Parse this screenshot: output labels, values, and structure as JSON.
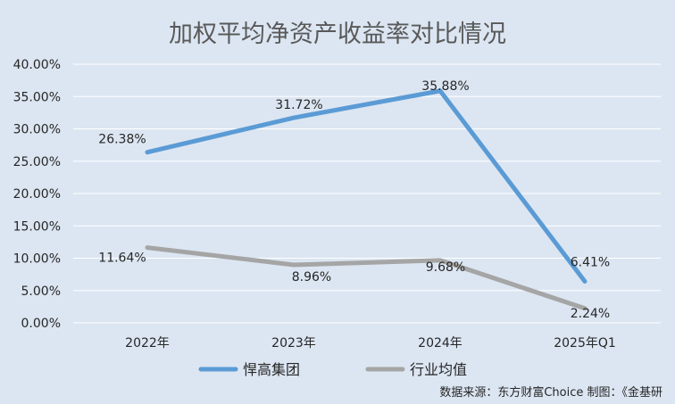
{
  "chart_data": {
    "type": "line",
    "title": "加权平均净资产收益率对比情况",
    "categories": [
      "2022年",
      "2023年",
      "2024年",
      "2025年Q1"
    ],
    "ylim": [
      0,
      40
    ],
    "y_ticks": [
      "0.00%",
      "5.00%",
      "10.00%",
      "15.00%",
      "20.00%",
      "25.00%",
      "30.00%",
      "35.00%",
      "40.00%"
    ],
    "y_tick_values": [
      0,
      5,
      10,
      15,
      20,
      25,
      30,
      35,
      40
    ],
    "grid": true,
    "legend_position": "bottom",
    "series": [
      {
        "name": "悍高集团",
        "values": [
          26.38,
          31.72,
          35.88,
          6.41
        ],
        "labels": [
          "26.38%",
          "31.72%",
          "35.88%",
          "6.41%"
        ],
        "color": "#5b9bd5"
      },
      {
        "name": "行业均值",
        "values": [
          11.64,
          8.96,
          9.68,
          2.24
        ],
        "labels": [
          "11.64%",
          "8.96%",
          "9.68%",
          "2.24%"
        ],
        "color": "#a5a5a5"
      }
    ]
  },
  "source_note": "数据来源：东方财富Choice    制图：《金基研"
}
